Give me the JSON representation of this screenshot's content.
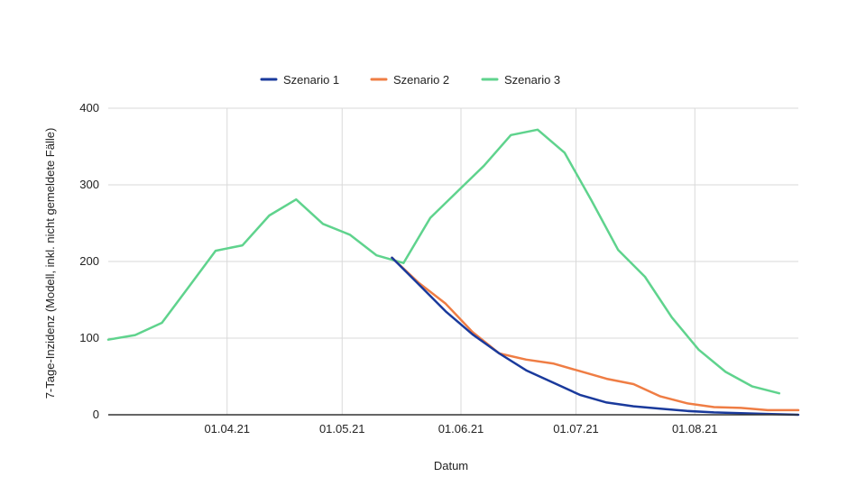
{
  "chart_data": {
    "type": "line",
    "xlabel": "Datum",
    "ylabel": "7-Tage-Inzidenz (Modell, inkl. nicht gemeldete Fälle)",
    "ylim": [
      0,
      400
    ],
    "yticks": [
      "0",
      "100",
      "200",
      "300",
      "400"
    ],
    "xlim": [
      "2021-03-01",
      "2021-08-28"
    ],
    "xtick_labels": [
      "01.04.21",
      "01.05.21",
      "01.06.21",
      "01.07.21",
      "01.08.21"
    ],
    "xtick_dates": [
      "2021-04-01",
      "2021-05-01",
      "2021-06-01",
      "2021-07-01",
      "2021-08-01"
    ],
    "grid": true,
    "legend_position": "top-center",
    "series": [
      {
        "name": "Szenario 1",
        "color": "#1a3a9c",
        "points": [
          [
            "2021-05-14",
            205
          ],
          [
            "2021-05-21",
            170
          ],
          [
            "2021-05-28",
            135
          ],
          [
            "2021-06-04",
            105
          ],
          [
            "2021-06-11",
            80
          ],
          [
            "2021-06-18",
            58
          ],
          [
            "2021-06-25",
            42
          ],
          [
            "2021-07-02",
            26
          ],
          [
            "2021-07-09",
            16
          ],
          [
            "2021-07-16",
            11
          ],
          [
            "2021-07-23",
            8
          ],
          [
            "2021-07-30",
            5
          ],
          [
            "2021-08-06",
            3
          ],
          [
            "2021-08-13",
            2
          ],
          [
            "2021-08-20",
            1
          ],
          [
            "2021-08-28",
            0
          ]
        ]
      },
      {
        "name": "Szenario 2",
        "color": "#ef7d44",
        "points": [
          [
            "2021-05-14",
            205
          ],
          [
            "2021-05-21",
            172
          ],
          [
            "2021-05-28",
            145
          ],
          [
            "2021-06-04",
            108
          ],
          [
            "2021-06-11",
            80
          ],
          [
            "2021-06-18",
            72
          ],
          [
            "2021-06-25",
            67
          ],
          [
            "2021-07-02",
            57
          ],
          [
            "2021-07-09",
            47
          ],
          [
            "2021-07-16",
            40
          ],
          [
            "2021-07-23",
            24
          ],
          [
            "2021-07-30",
            15
          ],
          [
            "2021-08-06",
            10
          ],
          [
            "2021-08-13",
            9
          ],
          [
            "2021-08-20",
            6
          ],
          [
            "2021-08-28",
            6
          ]
        ]
      },
      {
        "name": "Szenario 3",
        "color": "#5fd38d",
        "points": [
          [
            "2021-03-01",
            98
          ],
          [
            "2021-03-08",
            104
          ],
          [
            "2021-03-15",
            120
          ],
          [
            "2021-03-22",
            167
          ],
          [
            "2021-03-29",
            214
          ],
          [
            "2021-04-05",
            221
          ],
          [
            "2021-04-12",
            260
          ],
          [
            "2021-04-19",
            281
          ],
          [
            "2021-04-26",
            249
          ],
          [
            "2021-05-03",
            235
          ],
          [
            "2021-05-10",
            208
          ],
          [
            "2021-05-17",
            198
          ],
          [
            "2021-05-24",
            257
          ],
          [
            "2021-05-31",
            291
          ],
          [
            "2021-06-07",
            325
          ],
          [
            "2021-06-14",
            365
          ],
          [
            "2021-06-21",
            372
          ],
          [
            "2021-06-28",
            342
          ],
          [
            "2021-07-05",
            280
          ],
          [
            "2021-07-12",
            215
          ],
          [
            "2021-07-19",
            180
          ],
          [
            "2021-07-26",
            127
          ],
          [
            "2021-08-02",
            85
          ],
          [
            "2021-08-09",
            56
          ],
          [
            "2021-08-16",
            37
          ],
          [
            "2021-08-23",
            28
          ]
        ]
      }
    ]
  }
}
